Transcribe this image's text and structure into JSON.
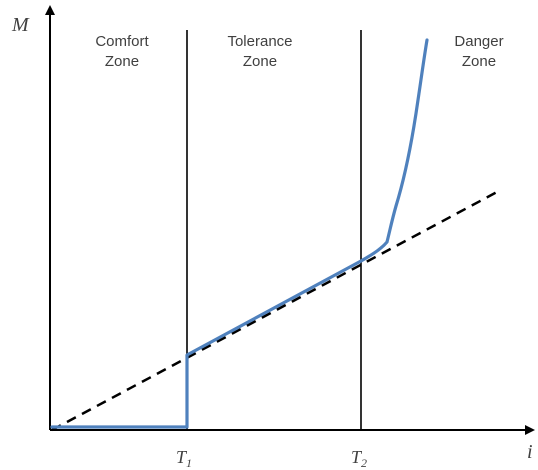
{
  "axes": {
    "y_label": "M",
    "x_label": "i"
  },
  "zones": [
    {
      "line1": "Comfort",
      "line2": "Zone"
    },
    {
      "line1": "Tolerance",
      "line2": "Zone"
    },
    {
      "line1": "Danger",
      "line2": "Zone"
    }
  ],
  "thresholds": [
    {
      "main": "T",
      "sub": "1"
    },
    {
      "main": "T",
      "sub": "2"
    }
  ],
  "colors": {
    "curve": "#4f81bd",
    "axis": "#000000",
    "dashed": "#000000"
  }
}
